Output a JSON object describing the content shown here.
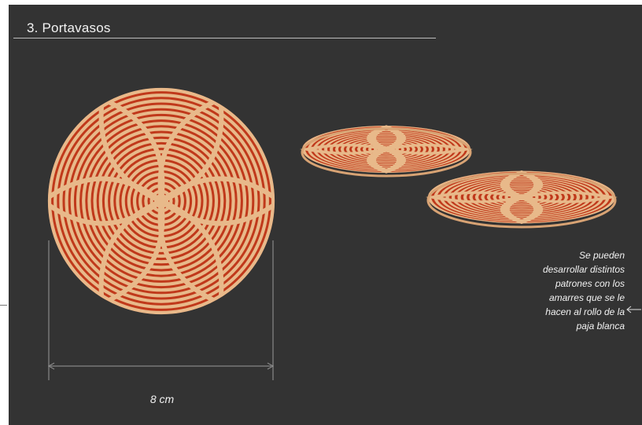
{
  "slide": {
    "title": "3. Portavasos",
    "dimension_label": "8 cm",
    "note_lines": [
      "Se pueden",
      "desarrollar distintos",
      "patrones con los",
      "amarres que se le",
      "hacen al rollo de la",
      "paja blanca"
    ]
  },
  "colors": {
    "background": "#333333",
    "straw": "#e8b98a",
    "red": "#c0391b",
    "dimension_line": "#9a9a9a",
    "text": "#f2f2f2"
  },
  "icons": {
    "note_arrow": "arrow-left-icon"
  }
}
